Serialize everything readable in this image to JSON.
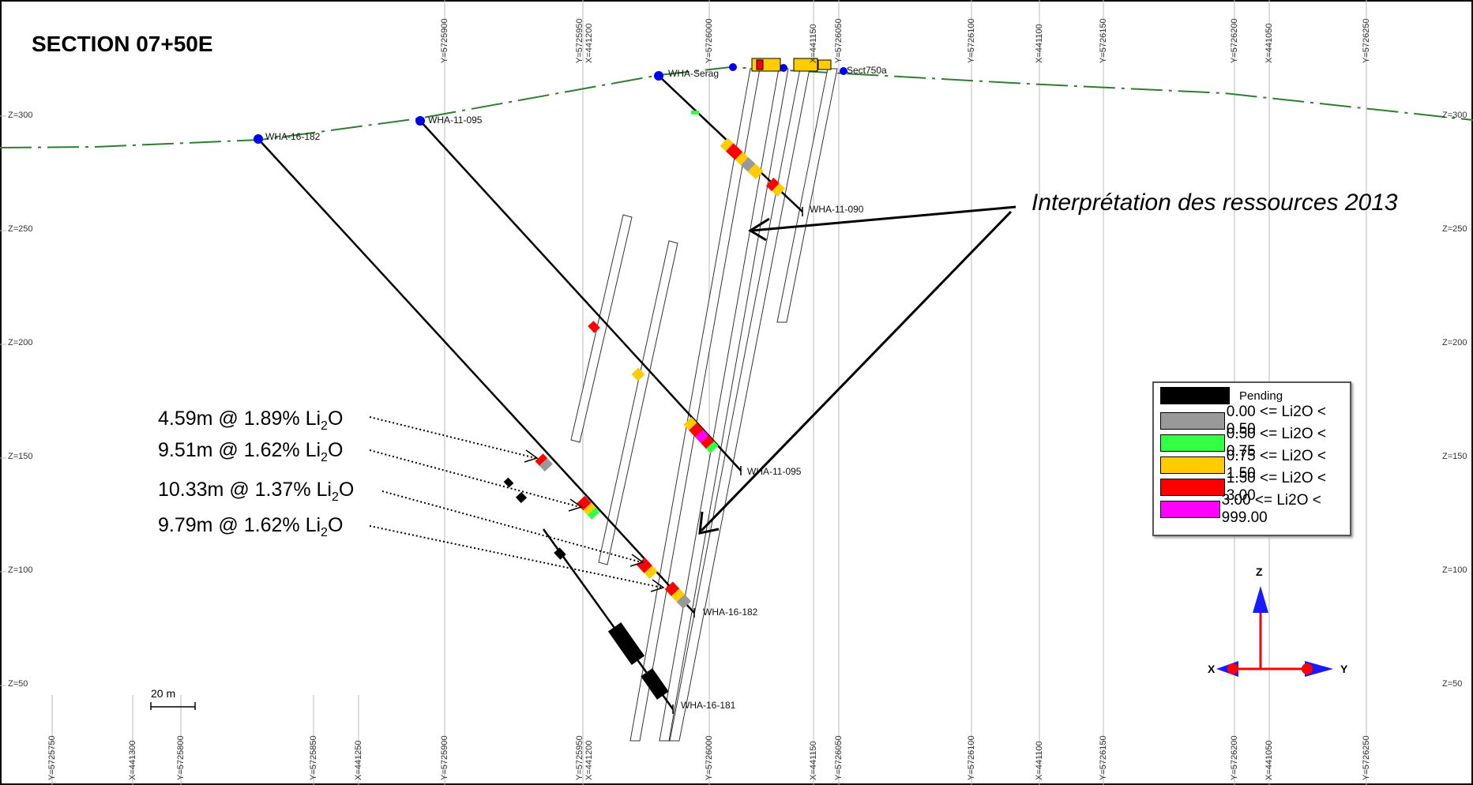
{
  "title": "SECTION 07+50E",
  "annotation": "Interprétation des ressources 2013",
  "intervals": [
    {
      "main": "4.59m @ 1.89% Li",
      "sub": "2",
      "tail": "O"
    },
    {
      "main": "9.51m @ 1.62% Li",
      "sub": "2",
      "tail": "O"
    },
    {
      "main": "10.33m @ 1.37% Li",
      "sub": "2",
      "tail": "O"
    },
    {
      "main": "9.79m @ 1.62% Li",
      "sub": "2",
      "tail": "O"
    }
  ],
  "z_labels": [
    "Z=300",
    "Z=250",
    "Z=200",
    "Z=150",
    "Z=100",
    "Z=50"
  ],
  "top_grid_labels": [
    "Y=5725900",
    "Y=5725950",
    "X=441200",
    "Y=5726000",
    "X=441150",
    "Y=5726050",
    "Y=5726100",
    "X=441100",
    "Y=5726150",
    "Y=5726200",
    "X=441050",
    "Y=5726250"
  ],
  "bottom_grid_labels": [
    "Y=5725750",
    "X=441300",
    "Y=5725800",
    "Y=5725850",
    "X=441250",
    "Y=5725900",
    "X=441200",
    "Y=5725950",
    "Y=5726000",
    "X=441150",
    "Y=5726050",
    "Y=5726100",
    "X=441100",
    "Y=5726150",
    "Y=5726200",
    "X=441050",
    "Y=5726250"
  ],
  "holes": [
    "WHA-16-182",
    "WHA-11-095",
    "WHA-11-090",
    "WHA-11-095",
    "WHA-16-182",
    "WHA-16-181",
    "Sect750a",
    "WHA-Serag"
  ],
  "legend": {
    "items": [
      {
        "label": "Pending",
        "color": "#000000"
      },
      {
        "label": "0.00 <= Li2O < 0.50",
        "color": "#999999"
      },
      {
        "label": "0.50 <= Li2O < 0.75",
        "color": "#33ff44"
      },
      {
        "label": "0.75 <= Li2O < 1.50",
        "color": "#ffcc00"
      },
      {
        "label": "1.50 <= Li2O < 3.00",
        "color": "#ff0000"
      },
      {
        "label": "3.00 <= Li2O < 999.00",
        "color": "#ff00ff"
      }
    ]
  },
  "scale_bar": "20 m",
  "axes": {
    "z": "Z",
    "x": "X",
    "y": "Y"
  },
  "colors": {
    "collar": "#0000ee",
    "topo": "#2e7d32",
    "axis_arrow": "#1a1aff",
    "axis_line": "#ff0000"
  }
}
